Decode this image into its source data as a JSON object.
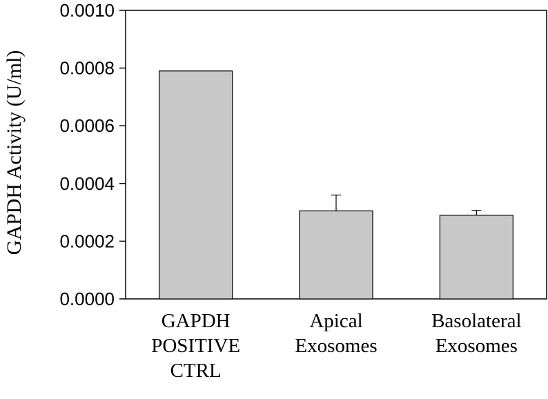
{
  "chart_data": {
    "type": "bar",
    "title": "",
    "xlabel": "",
    "ylabel": "GAPDH Activity (U/ml)",
    "ylim": [
      0,
      0.001
    ],
    "yticks": [
      "0.0000",
      "0.0002",
      "0.0004",
      "0.0006",
      "0.0008",
      "0.0010"
    ],
    "categories": [
      [
        "GAPDH",
        "POSITIVE",
        "CTRL"
      ],
      [
        "Apical",
        "Exosomes"
      ],
      [
        "Basolateral",
        "Exosomes"
      ]
    ],
    "values": [
      0.00079,
      0.000305,
      0.00029
    ],
    "errors": [
      0,
      5.5e-05,
      1.7e-05
    ],
    "grid": false,
    "colors": {
      "bar_fill": "#c8c8c8",
      "bar_stroke": "#000000",
      "axis": "#000000"
    }
  }
}
